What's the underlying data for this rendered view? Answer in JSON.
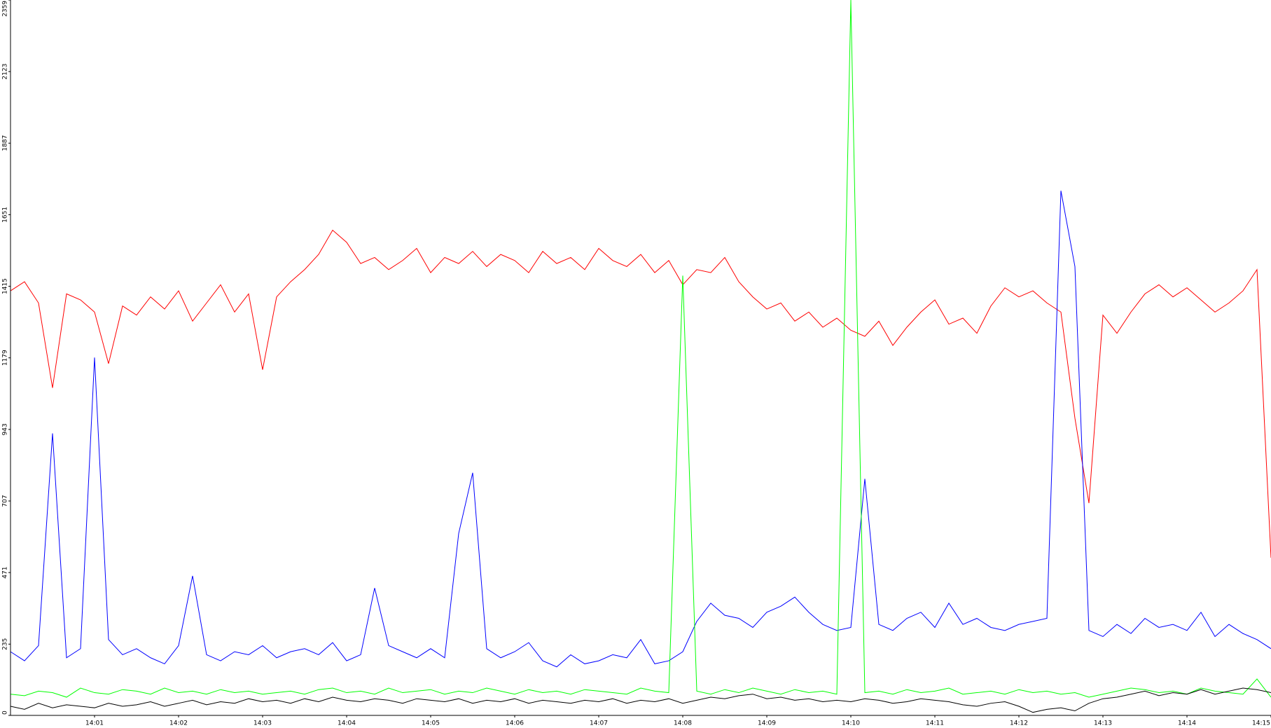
{
  "chart_data": {
    "type": "line",
    "x": [
      0,
      10,
      20,
      30,
      40,
      50,
      60,
      70,
      80,
      90,
      100,
      110,
      120,
      130,
      140,
      150,
      160,
      170,
      180,
      190,
      200,
      210,
      220,
      230,
      240,
      250,
      260,
      270,
      280,
      290,
      300,
      310,
      320,
      330,
      340,
      350,
      360,
      370,
      380,
      390,
      400,
      410,
      420,
      430,
      440,
      450,
      460,
      470,
      480,
      490,
      500,
      510,
      520,
      530,
      540,
      550,
      560,
      570,
      580,
      590,
      600,
      610,
      620,
      630,
      640,
      650,
      660,
      670,
      680,
      690,
      700,
      710,
      720,
      730,
      740,
      750,
      760,
      770,
      780,
      790,
      800,
      810,
      820,
      830,
      840,
      850,
      860,
      870,
      880,
      890,
      900
    ],
    "xlim": [
      0,
      900
    ],
    "xticks": [
      {
        "value": 60,
        "label": "14:01"
      },
      {
        "value": 120,
        "label": "14:02"
      },
      {
        "value": 180,
        "label": "14:03"
      },
      {
        "value": 240,
        "label": "14:04"
      },
      {
        "value": 300,
        "label": "14:05"
      },
      {
        "value": 360,
        "label": "14:06"
      },
      {
        "value": 420,
        "label": "14:07"
      },
      {
        "value": 480,
        "label": "14:08"
      },
      {
        "value": 540,
        "label": "14:09"
      },
      {
        "value": 600,
        "label": "14:10"
      },
      {
        "value": 660,
        "label": "14:11"
      },
      {
        "value": 720,
        "label": "14:12"
      },
      {
        "value": 780,
        "label": "14:13"
      },
      {
        "value": 840,
        "label": "14:14"
      },
      {
        "value": 900,
        "label": "14:15"
      }
    ],
    "ylim": [
      0,
      2359
    ],
    "yticks": [
      0,
      235,
      471,
      707,
      943,
      1179,
      1415,
      1651,
      1887,
      2123,
      2359
    ],
    "series": [
      {
        "color": "#ff0000",
        "values": [
          1400,
          1430,
          1360,
          1080,
          1390,
          1370,
          1330,
          1160,
          1350,
          1320,
          1380,
          1340,
          1400,
          1300,
          1360,
          1420,
          1330,
          1390,
          1140,
          1380,
          1430,
          1470,
          1520,
          1600,
          1560,
          1490,
          1510,
          1470,
          1500,
          1540,
          1460,
          1510,
          1490,
          1530,
          1480,
          1520,
          1500,
          1460,
          1530,
          1490,
          1510,
          1470,
          1540,
          1500,
          1480,
          1520,
          1460,
          1500,
          1420,
          1470,
          1460,
          1510,
          1430,
          1380,
          1340,
          1360,
          1300,
          1330,
          1280,
          1310,
          1270,
          1250,
          1300,
          1220,
          1280,
          1330,
          1370,
          1290,
          1310,
          1260,
          1350,
          1410,
          1380,
          1400,
          1360,
          1330,
          980,
          700,
          1320,
          1260,
          1330,
          1390,
          1420,
          1380,
          1410,
          1370,
          1330,
          1360,
          1400,
          1470,
          520
        ]
      },
      {
        "color": "#0000ff",
        "values": [
          210,
          180,
          230,
          930,
          190,
          220,
          1180,
          250,
          200,
          220,
          190,
          170,
          230,
          460,
          200,
          180,
          210,
          200,
          230,
          190,
          210,
          220,
          200,
          240,
          180,
          200,
          420,
          230,
          210,
          190,
          220,
          190,
          600,
          800,
          220,
          190,
          210,
          240,
          180,
          160,
          200,
          170,
          180,
          200,
          190,
          250,
          170,
          180,
          210,
          310,
          370,
          330,
          320,
          290,
          340,
          360,
          390,
          340,
          300,
          280,
          290,
          780,
          300,
          280,
          320,
          340,
          290,
          370,
          300,
          320,
          290,
          280,
          300,
          310,
          320,
          1730,
          1480,
          280,
          260,
          300,
          270,
          320,
          290,
          300,
          280,
          340,
          260,
          300,
          270,
          250,
          220
        ]
      },
      {
        "color": "#00ff00",
        "values": [
          70,
          65,
          80,
          75,
          60,
          90,
          75,
          70,
          85,
          80,
          70,
          90,
          75,
          80,
          70,
          85,
          75,
          80,
          70,
          75,
          80,
          70,
          85,
          90,
          75,
          80,
          70,
          90,
          75,
          80,
          85,
          70,
          80,
          75,
          90,
          80,
          70,
          85,
          75,
          80,
          70,
          85,
          80,
          75,
          70,
          90,
          80,
          75,
          1450,
          80,
          70,
          85,
          75,
          90,
          80,
          70,
          85,
          75,
          80,
          70,
          2359,
          75,
          80,
          70,
          85,
          75,
          80,
          90,
          70,
          75,
          80,
          70,
          85,
          75,
          80,
          70,
          75,
          60,
          70,
          80,
          90,
          85,
          75,
          80,
          70,
          90,
          80,
          75,
          70,
          120,
          60
        ]
      },
      {
        "color": "#000000",
        "values": [
          30,
          20,
          40,
          25,
          35,
          30,
          25,
          40,
          30,
          35,
          45,
          30,
          40,
          50,
          35,
          45,
          40,
          55,
          45,
          50,
          40,
          55,
          45,
          60,
          50,
          45,
          55,
          50,
          40,
          55,
          50,
          45,
          55,
          40,
          50,
          45,
          55,
          40,
          50,
          45,
          40,
          50,
          45,
          55,
          40,
          50,
          45,
          55,
          40,
          50,
          60,
          55,
          65,
          70,
          55,
          60,
          50,
          55,
          45,
          50,
          45,
          55,
          50,
          40,
          45,
          55,
          50,
          45,
          35,
          30,
          40,
          45,
          30,
          10,
          20,
          25,
          15,
          40,
          55,
          60,
          70,
          80,
          65,
          75,
          70,
          85,
          70,
          80,
          90,
          85,
          75
        ]
      }
    ]
  }
}
